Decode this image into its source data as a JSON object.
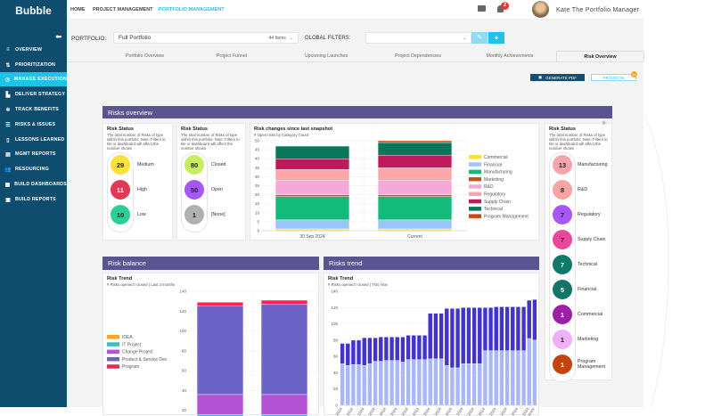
{
  "app": {
    "logo": "Bubble"
  },
  "nav": {
    "items": [
      "HOME",
      "PROJECT MANAGEMENT",
      "PORTFOLIO MANAGEMENT"
    ],
    "active": 2,
    "active_color": "#1ec3ea"
  },
  "user": {
    "name": "Kate The Portfolio Manager",
    "notifications": "2"
  },
  "sidebar": {
    "items": [
      {
        "label": "OVERVIEW",
        "icon": "overview-icon",
        "glyph": "≡"
      },
      {
        "label": "PRIORITIZATION",
        "icon": "prioritization-icon",
        "glyph": "⇅"
      },
      {
        "label": "MANAGE EXECUTION",
        "icon": "clock-icon",
        "glyph": "◷",
        "active": true
      },
      {
        "label": "DELIVER STRATEGY",
        "icon": "road-icon",
        "glyph": "▙"
      },
      {
        "label": "TRACK BENEFITS",
        "icon": "gear-icon",
        "glyph": "✲"
      },
      {
        "label": "RISKS & ISSUES",
        "icon": "list-icon",
        "glyph": "☰"
      },
      {
        "label": "LESSONS LEARNED",
        "icon": "book-icon",
        "glyph": "▯"
      },
      {
        "label": "MGMT REPORTS",
        "icon": "report-icon",
        "glyph": "▤"
      },
      {
        "label": "RESOURCING",
        "icon": "people-icon",
        "glyph": "👥"
      },
      {
        "label": "BUILD DASHBOARDS",
        "icon": "dashboard-icon",
        "glyph": "▦"
      },
      {
        "label": "BUILD REPORTS",
        "icon": "clipboard-icon",
        "glyph": "▣"
      }
    ],
    "bg": "#0f4d6f",
    "active_bg": "#1ec3ea"
  },
  "filters": {
    "portfolio_label": "PORTFOLIO:",
    "portfolio_value": "Full Portfolio",
    "portfolio_count": "44 Items",
    "global_label": "GLOBAL FILTERS:",
    "global_value": ""
  },
  "tabs": [
    "Portfolio Overview",
    "Project Funnel",
    "Upcoming Launches",
    "Project Dependencies",
    "Monthly Achievements",
    "Risk Overview"
  ],
  "active_tab": 5,
  "actions": {
    "generate_pdf": "GENERATE PDF",
    "projects": "PROJECTS",
    "projects_badge": "44"
  },
  "risks_overview": {
    "title": "Risks overview",
    "severity_tile": {
      "title": "Risk Status",
      "desc": "The total number of Risks of type within this portfolio. Note: Filters to tile or dashboard will affect the number shown",
      "items": [
        {
          "value": "29",
          "label": "Medium",
          "color": "#fde13a"
        },
        {
          "value": "11",
          "label": "High",
          "color": "#e03a52"
        },
        {
          "value": "10",
          "label": "Low",
          "color": "#2bcf96"
        }
      ]
    },
    "status_tile": {
      "title": "Risk Status",
      "desc": "The total number of Risks of type within this portfolio. Note: Filters to tile or dashboard will affect the number shown",
      "items": [
        {
          "value": "80",
          "label": "Closed",
          "color": "#c6ef5e"
        },
        {
          "value": "50",
          "label": "Open",
          "color": "#a657f5"
        },
        {
          "value": "1",
          "label": "[None]",
          "color": "#b0b0b0"
        }
      ]
    },
    "category_tile": {
      "title": "Risk Status",
      "desc": "The total number of Risks of type within this portfolio. Note: Filters to tile or dashboard will affect the number shown",
      "items": [
        {
          "value": "13",
          "label": "Manufacturing",
          "color": "#f8a4ad"
        },
        {
          "value": "8",
          "label": "R&D",
          "color": "#f8a4a4"
        },
        {
          "value": "7",
          "label": "Regulatory",
          "color": "#a657f5"
        },
        {
          "value": "7",
          "label": "Supply Chain",
          "color": "#e9479a"
        },
        {
          "value": "7",
          "label": "Technical",
          "color": "#0f7a6a"
        },
        {
          "value": "5",
          "label": "Financial",
          "color": "#137568"
        },
        {
          "value": "1",
          "label": "Commercial",
          "color": "#9c1fa6"
        },
        {
          "value": "1",
          "label": "Marketing",
          "color": "#efb0f5"
        },
        {
          "value": "1",
          "label": "Program Management",
          "color": "#c5430f"
        }
      ]
    }
  },
  "risk_balance": {
    "title": "Risk balance"
  },
  "risks_trend": {
    "title": "Risks trend"
  },
  "chart_data": [
    {
      "type": "bar",
      "stacked": true,
      "title": "Risk changes since last snapshot",
      "subtitle": "# Open risks by Category Count",
      "categories": [
        "30 Sep 2024",
        "Current"
      ],
      "ylim": [
        0,
        50
      ],
      "yticks": [
        0,
        5,
        10,
        15,
        20,
        25,
        30,
        35,
        40,
        45,
        50
      ],
      "legend": "right",
      "grid": true,
      "series": [
        {
          "name": "Commercial",
          "color": "#fde13a",
          "values": [
            1,
            1
          ]
        },
        {
          "name": "Financial",
          "color": "#99c6ff",
          "values": [
            5,
            5
          ]
        },
        {
          "name": "Manufacturing",
          "color": "#12bb7c",
          "values": [
            13,
            13
          ]
        },
        {
          "name": "Marketing",
          "color": "#c55410",
          "values": [
            1,
            1
          ]
        },
        {
          "name": "R&D",
          "color": "#f6a8d6",
          "values": [
            8,
            8
          ]
        },
        {
          "name": "Regulatory",
          "color": "#fda5a9",
          "values": [
            6,
            7
          ]
        },
        {
          "name": "Supply Chain",
          "color": "#c01a5c",
          "values": [
            6,
            7
          ]
        },
        {
          "name": "Technical",
          "color": "#06775a",
          "values": [
            7,
            7
          ]
        },
        {
          "name": "Program Management",
          "color": "#d0440f",
          "values": [
            0,
            1
          ]
        }
      ]
    },
    {
      "type": "bar",
      "stacked": true,
      "title": "Risk Trend",
      "subtitle": "# Risks opened / closed | Last 3 months",
      "categories": [
        "",
        ""
      ],
      "ylim": [
        0,
        140
      ],
      "yticks": [
        20,
        40,
        60,
        80,
        100,
        120,
        140
      ],
      "legend": "left",
      "grid": true,
      "series": [
        {
          "name": "IDEA",
          "color": "#f5a623",
          "values": [
            1,
            1
          ]
        },
        {
          "name": "IT Project",
          "color": "#37bfbf",
          "values": [
            15,
            15
          ]
        },
        {
          "name": "Change Project",
          "color": "#b452d6",
          "values": [
            20,
            20
          ]
        },
        {
          "name": "Product & Service Dev",
          "color": "#6c63c9",
          "values": [
            89,
            91
          ]
        },
        {
          "name": "Program",
          "color": "#ff2257",
          "values": [
            4,
            4
          ]
        }
      ]
    },
    {
      "type": "bar",
      "stacked": true,
      "title": "Risk Trend",
      "subtitle": "# Risks opened / closed | This Year",
      "ylim": [
        0,
        140
      ],
      "yticks": [
        0,
        20,
        40,
        60,
        80,
        100,
        120,
        140
      ],
      "grid": true,
      "categories": [
        "Jan 2024",
        "",
        "Feb 2024",
        "",
        "Feb 2024",
        "",
        "Mar 2024",
        "",
        "Mar 2024",
        "",
        "Apr 2024",
        "",
        "Apr 2024",
        "",
        "May 2024",
        "",
        "May 2024",
        "",
        "Jun 2024",
        "",
        "Jun 2024",
        "",
        "Jun 2024",
        "",
        "Jul 2024",
        "",
        "Jul 2024",
        "",
        "Aug 2024",
        "",
        "Aug 2024",
        "",
        "Aug 2024",
        "",
        "Sep 2024",
        "Current"
      ],
      "series": [
        {
          "color": "#a9b7f7",
          "values": [
            51,
            49,
            50,
            50,
            49,
            51,
            54,
            54,
            55,
            55,
            55,
            53,
            56,
            56,
            56,
            56,
            57,
            57,
            57,
            49,
            46,
            46,
            51,
            51,
            51,
            51,
            67,
            67,
            67,
            67,
            67,
            67,
            67,
            67,
            82,
            80
          ]
        },
        {
          "color": "#4433c9",
          "values": [
            25,
            27,
            30,
            30,
            34,
            32,
            29,
            30,
            29,
            29,
            29,
            31,
            30,
            30,
            30,
            30,
            56,
            56,
            56,
            70,
            73,
            73,
            69,
            69,
            69,
            69,
            53,
            53,
            54,
            54,
            54,
            54,
            54,
            54,
            47,
            50
          ]
        }
      ]
    }
  ]
}
